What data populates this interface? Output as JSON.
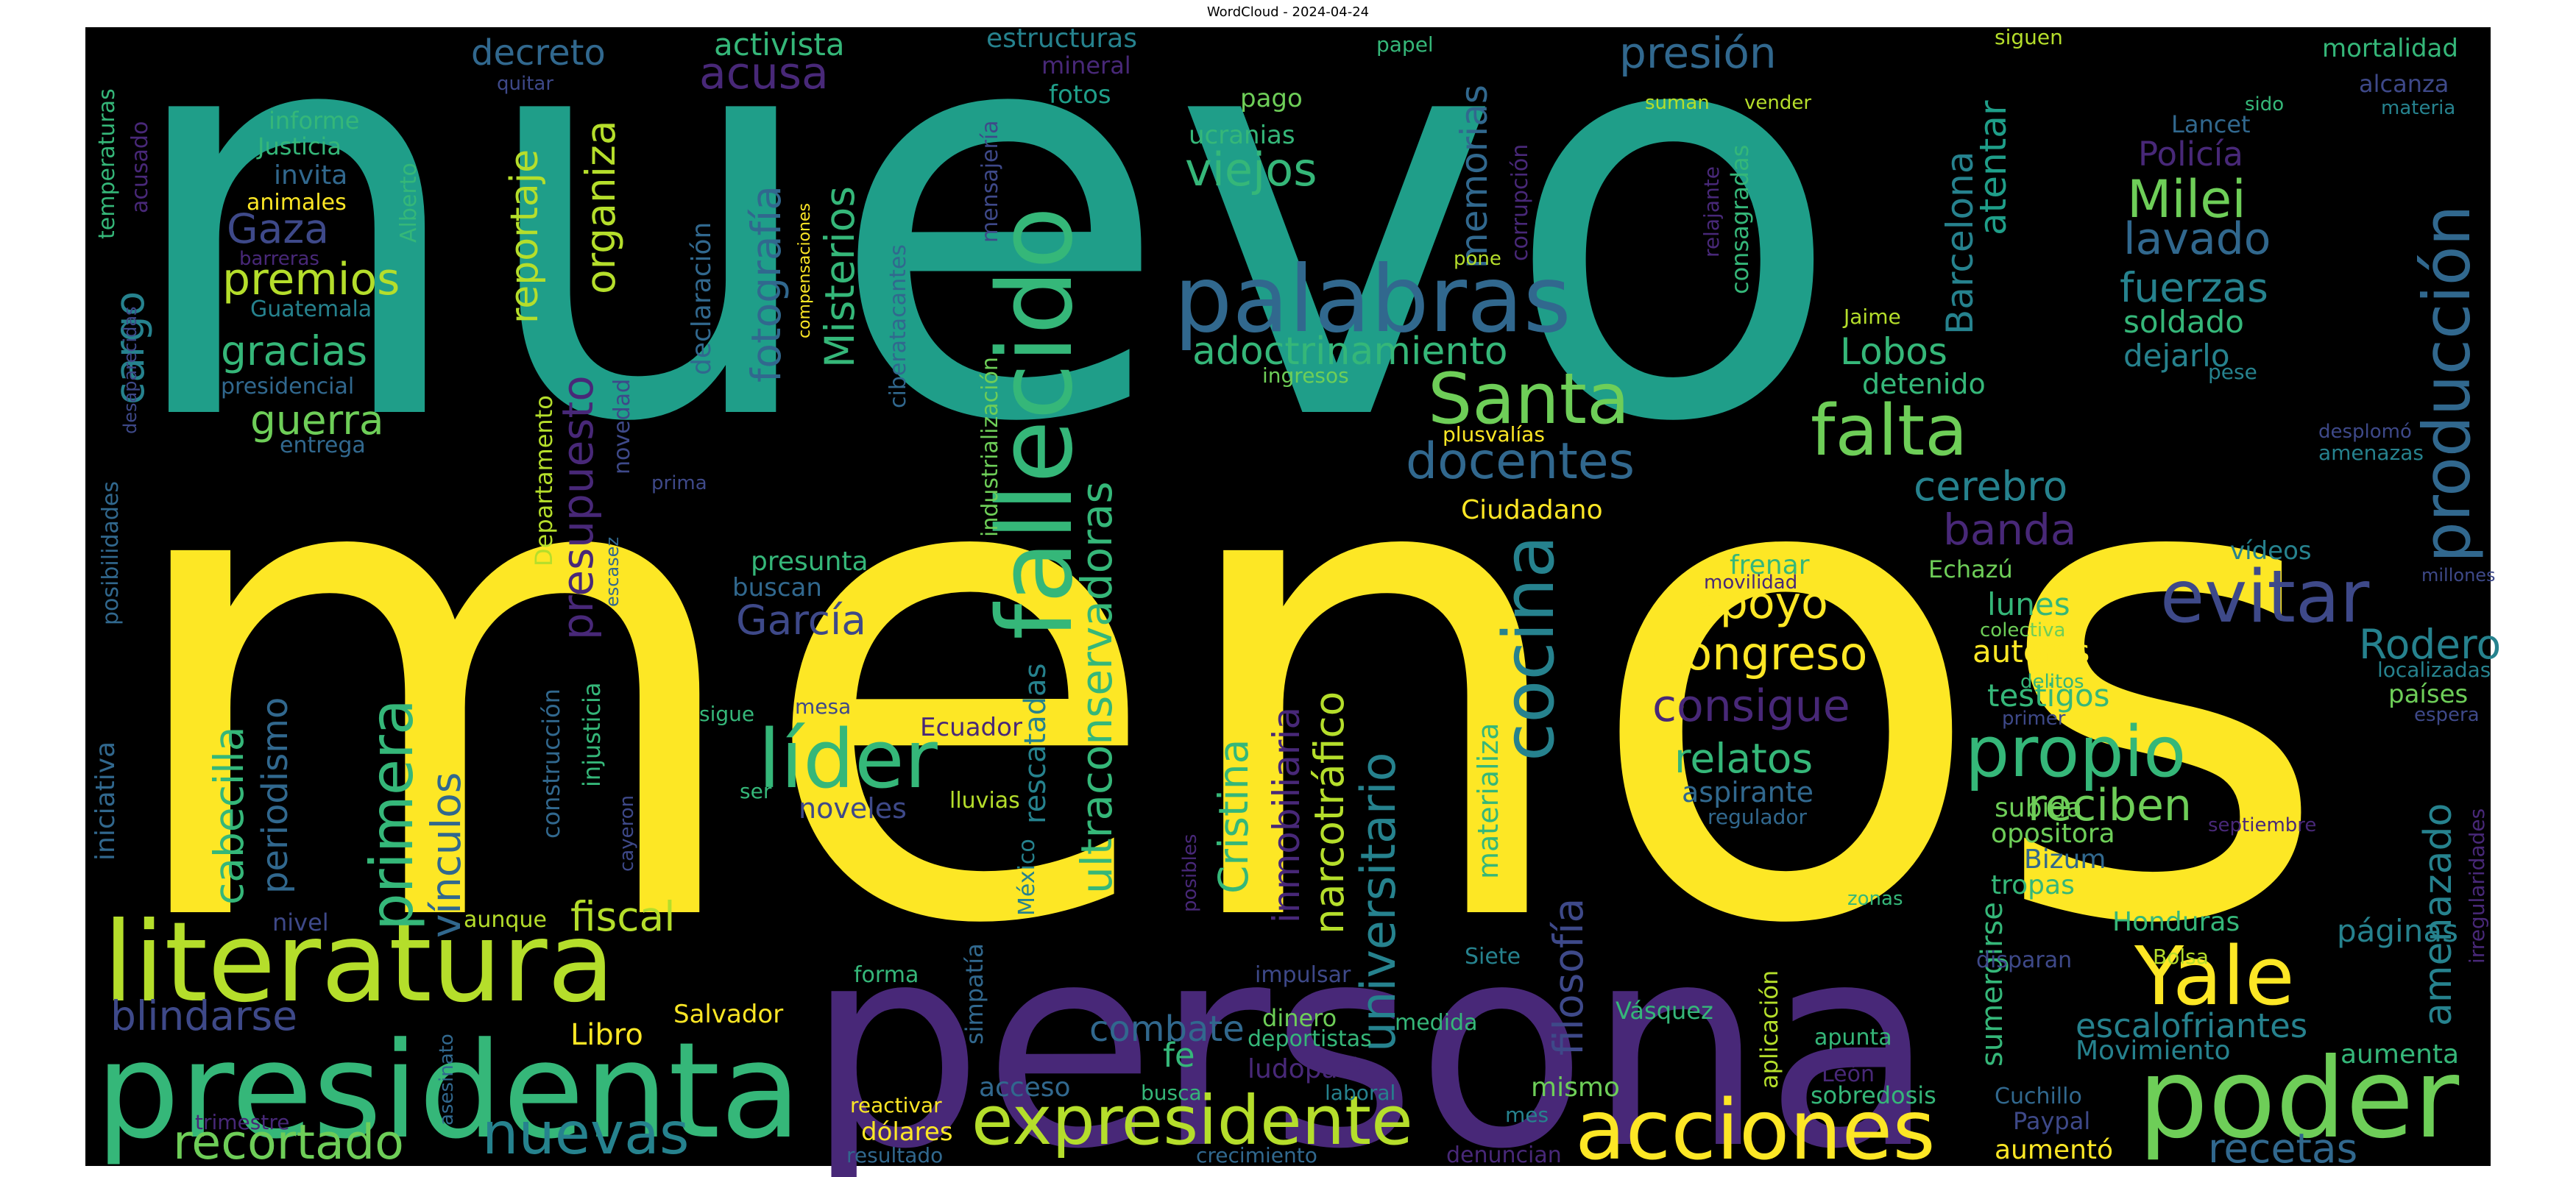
{
  "title": "WordCloud - 2024-04-24",
  "colors": {
    "background": "#000000",
    "page": "#ffffff",
    "palette": [
      "#fde725",
      "#b5de2b",
      "#6ece58",
      "#35b779",
      "#1f9e89",
      "#26828e",
      "#31688e",
      "#3e4989",
      "#482878",
      "#440154"
    ]
  },
  "chart_data": {
    "type": "wordcloud",
    "colormap": "viridis",
    "words": [
      {
        "text": "nuevo",
        "rank": 1,
        "color": "#1f9e89"
      },
      {
        "text": "menos",
        "rank": 2,
        "color": "#fde725"
      },
      {
        "text": "persona",
        "rank": 3,
        "color": "#482878"
      },
      {
        "text": "presidenta",
        "rank": 4,
        "color": "#35b779"
      },
      {
        "text": "literatura",
        "rank": 5,
        "color": "#b5de2b"
      },
      {
        "text": "poder",
        "rank": 6,
        "color": "#6ece58"
      },
      {
        "text": "acciones",
        "rank": 7,
        "color": "#fde725"
      },
      {
        "text": "expresidente",
        "rank": 8,
        "color": "#b5de2b"
      },
      {
        "text": "palabras",
        "rank": 9,
        "color": "#31688e"
      },
      {
        "text": "fallecido",
        "rank": 10,
        "color": "#35b779"
      },
      {
        "text": "nuevas",
        "rank": 11,
        "color": "#26828e"
      },
      {
        "text": "producción",
        "rank": 12,
        "color": "#31688e"
      },
      {
        "text": "líder",
        "rank": 13,
        "color": "#35b779"
      },
      {
        "text": "Yale",
        "rank": 14,
        "color": "#fde725"
      },
      {
        "text": "recortado",
        "rank": 15,
        "color": "#6ece58"
      },
      {
        "text": "Santa",
        "rank": 16,
        "color": "#6ece58"
      },
      {
        "text": "propio",
        "rank": 17,
        "color": "#35b779"
      },
      {
        "text": "falta",
        "rank": 18,
        "color": "#6ece58"
      },
      {
        "text": "evitar",
        "rank": 19,
        "color": "#3e4989"
      },
      {
        "text": "cocina",
        "rank": 20,
        "color": "#26828e"
      },
      {
        "text": "primera",
        "rank": 21,
        "color": "#35b779"
      },
      {
        "text": "universitario",
        "rank": 22,
        "color": "#26828e"
      },
      {
        "text": "ultraconservadoras",
        "rank": 23,
        "color": "#35b779"
      },
      {
        "text": "Milei",
        "rank": 24,
        "color": "#6ece58"
      },
      {
        "text": "docentes",
        "rank": 25,
        "color": "#31688e"
      },
      {
        "text": "presupuesto",
        "rank": 26,
        "color": "#482878"
      },
      {
        "text": "Congreso",
        "rank": 27,
        "color": "#fde725"
      },
      {
        "text": "vínculos",
        "rank": 28,
        "color": "#31688e"
      },
      {
        "text": "viejos",
        "rank": 29,
        "color": "#35b779"
      },
      {
        "text": "Cristina",
        "rank": 30,
        "color": "#35b779"
      },
      {
        "text": "filosofía",
        "rank": 31,
        "color": "#3e4989"
      },
      {
        "text": "reciben",
        "rank": 32,
        "color": "#6ece58"
      },
      {
        "text": "fiscal",
        "rank": 33,
        "color": "#b5de2b"
      },
      {
        "text": "narcotráfico",
        "rank": 34,
        "color": "#b5de2b"
      },
      {
        "text": "fotografía",
        "rank": 35,
        "color": "#31688e"
      },
      {
        "text": "Misterios",
        "rank": 36,
        "color": "#35b779"
      },
      {
        "text": "organiza",
        "rank": 37,
        "color": "#b5de2b"
      },
      {
        "text": "amenazado",
        "rank": 38,
        "color": "#26828e"
      },
      {
        "text": "adoctrinamiento",
        "rank": 39,
        "color": "#35b779"
      },
      {
        "text": "inmobiliaria",
        "rank": 40,
        "color": "#482878"
      },
      {
        "text": "consigue",
        "rank": 41,
        "color": "#482878"
      },
      {
        "text": "relatos",
        "rank": 42,
        "color": "#35b779"
      },
      {
        "text": "García",
        "rank": 43,
        "color": "#3e4989"
      },
      {
        "text": "presión",
        "rank": 44,
        "color": "#31688e"
      },
      {
        "text": "memorias",
        "rank": 45,
        "color": "#31688e"
      },
      {
        "text": "reportaje",
        "rank": 46,
        "color": "#b5de2b"
      },
      {
        "text": "acusa",
        "rank": 47,
        "color": "#482878"
      },
      {
        "text": "cabecilla",
        "rank": 48,
        "color": "#35b779"
      },
      {
        "text": "gracias",
        "rank": 49,
        "color": "#35b779"
      },
      {
        "text": "guerra",
        "rank": 50,
        "color": "#6ece58"
      },
      {
        "text": "premios",
        "rank": 51,
        "color": "#b5de2b"
      },
      {
        "text": "Gaza",
        "rank": 52,
        "color": "#3e4989"
      },
      {
        "text": "blindarse",
        "rank": 53,
        "color": "#3e4989"
      },
      {
        "text": "periodismo",
        "rank": 54,
        "color": "#31688e"
      },
      {
        "text": "Barcelona",
        "rank": 55,
        "color": "#26828e"
      },
      {
        "text": "atentar",
        "rank": 56,
        "color": "#1f9e89"
      },
      {
        "text": "lavado",
        "rank": 57,
        "color": "#31688e"
      },
      {
        "text": "fuerzas",
        "rank": 58,
        "color": "#26828e"
      },
      {
        "text": "cerebro",
        "rank": 59,
        "color": "#26828e"
      },
      {
        "text": "apoyo",
        "rank": 60,
        "color": "#fde725"
      },
      {
        "text": "banda",
        "rank": 61,
        "color": "#482878"
      },
      {
        "text": "Lobos",
        "rank": 62,
        "color": "#35b779"
      },
      {
        "text": "Rodero",
        "rank": 63,
        "color": "#26828e"
      },
      {
        "text": "combate",
        "rank": 64,
        "color": "#31688e"
      },
      {
        "text": "recetas",
        "rank": 65,
        "color": "#31688e"
      },
      {
        "text": "escalofriantes",
        "rank": 66,
        "color": "#26828e"
      },
      {
        "text": "páginas",
        "rank": 67,
        "color": "#26828e"
      },
      {
        "text": "cargo",
        "rank": 68,
        "color": "#26828e"
      },
      {
        "text": "decreto",
        "rank": 69,
        "color": "#31688e"
      },
      {
        "text": "activista",
        "rank": 70,
        "color": "#35b779"
      },
      {
        "text": "estructuras",
        "rank": 71,
        "color": "#26828e"
      },
      {
        "text": "Libro",
        "rank": 72,
        "color": "#fde725"
      },
      {
        "text": "sumergirse",
        "rank": 73,
        "color": "#35b779"
      },
      {
        "text": "testigos",
        "rank": 74,
        "color": "#35b779"
      },
      {
        "text": "autoras",
        "rank": 75,
        "color": "#fde725"
      },
      {
        "text": "lunes",
        "rank": 76,
        "color": "#35b779"
      },
      {
        "text": "noveles",
        "rank": 77,
        "color": "#3e4989"
      },
      {
        "text": "rescatadas",
        "rank": 78,
        "color": "#26828e"
      },
      {
        "text": "materializa",
        "rank": 79,
        "color": "#35b779"
      },
      {
        "text": "soldado",
        "rank": 80,
        "color": "#35b779"
      },
      {
        "text": "dejarlo",
        "rank": 81,
        "color": "#26828e"
      },
      {
        "text": "detenido",
        "rank": 82,
        "color": "#35b779"
      },
      {
        "text": "Policía",
        "rank": 83,
        "color": "#482878"
      },
      {
        "text": "aspirante",
        "rank": 84,
        "color": "#31688e"
      },
      {
        "text": "subida",
        "rank": 85,
        "color": "#6ece58"
      },
      {
        "text": "opositora",
        "rank": 86,
        "color": "#6ece58"
      },
      {
        "text": "Bizum",
        "rank": 87,
        "color": "#31688e"
      },
      {
        "text": "tropas",
        "rank": 88,
        "color": "#35b779"
      },
      {
        "text": "Honduras",
        "rank": 89,
        "color": "#35b779"
      },
      {
        "text": "Movimiento",
        "rank": 90,
        "color": "#26828e"
      },
      {
        "text": "aumenta",
        "rank": 91,
        "color": "#35b779"
      },
      {
        "text": "mismo",
        "rank": 92,
        "color": "#6ece58"
      },
      {
        "text": "acceso",
        "rank": 93,
        "color": "#31688e"
      },
      {
        "text": "ludopatía",
        "rank": 94,
        "color": "#482878"
      },
      {
        "text": "fe",
        "rank": 95,
        "color": "#35b779"
      },
      {
        "text": "Salvador",
        "rank": 96,
        "color": "#fde725"
      },
      {
        "text": "Ciudadano",
        "rank": 97,
        "color": "#fde725"
      },
      {
        "text": "presunta",
        "rank": 98,
        "color": "#35b779"
      },
      {
        "text": "buscan",
        "rank": 99,
        "color": "#31688e"
      },
      {
        "text": "frenar",
        "rank": 100,
        "color": "#35b779"
      },
      {
        "text": "Echazú",
        "rank": 101,
        "color": "#6ece58"
      },
      {
        "text": "ucranias",
        "rank": 102,
        "color": "#35b779"
      },
      {
        "text": "pago",
        "rank": 103,
        "color": "#6ece58"
      },
      {
        "text": "fotos",
        "rank": 104,
        "color": "#1f9e89"
      },
      {
        "text": "mineral",
        "rank": 105,
        "color": "#482878"
      },
      {
        "text": "informe",
        "rank": 106,
        "color": "#35b779"
      },
      {
        "text": "Justicia",
        "rank": 107,
        "color": "#35b779"
      },
      {
        "text": "invita",
        "rank": 108,
        "color": "#31688e"
      },
      {
        "text": "animales",
        "rank": 109,
        "color": "#fde725"
      },
      {
        "text": "Guatemala",
        "rank": 110,
        "color": "#26828e"
      },
      {
        "text": "presidencial",
        "rank": 111,
        "color": "#31688e"
      },
      {
        "text": "entrega",
        "rank": 112,
        "color": "#31688e"
      },
      {
        "text": "barreras",
        "rank": 113,
        "color": "#482878"
      },
      {
        "text": "Alberto",
        "rank": 114,
        "color": "#35b779"
      },
      {
        "text": "temperaturas",
        "rank": 115,
        "color": "#35b779"
      },
      {
        "text": "acusado",
        "rank": 116,
        "color": "#482878"
      },
      {
        "text": "quitar",
        "rank": 117,
        "color": "#3e4989"
      },
      {
        "text": "declaración",
        "rank": 118,
        "color": "#31688e"
      },
      {
        "text": "mensajería",
        "rank": 119,
        "color": "#3e4989"
      },
      {
        "text": "ciberatacantes",
        "rank": 120,
        "color": "#31688e"
      },
      {
        "text": "compensaciones",
        "rank": 121,
        "color": "#fde725"
      },
      {
        "text": "industrialización",
        "rank": 122,
        "color": "#6ece58"
      },
      {
        "text": "Departamento",
        "rank": 123,
        "color": "#b5de2b"
      },
      {
        "text": "novedad",
        "rank": 124,
        "color": "#3e4989"
      },
      {
        "text": "construcción",
        "rank": 125,
        "color": "#31688e"
      },
      {
        "text": "injusticia",
        "rank": 126,
        "color": "#35b779"
      },
      {
        "text": "iniciativa",
        "rank": 127,
        "color": "#31688e"
      },
      {
        "text": "posibilidades",
        "rank": 128,
        "color": "#31688e"
      },
      {
        "text": "desaparecidas",
        "rank": 129,
        "color": "#3e4989"
      },
      {
        "text": "escasez",
        "rank": 130,
        "color": "#31688e"
      },
      {
        "text": "prima",
        "rank": 131,
        "color": "#3e4989"
      },
      {
        "text": "cayeron",
        "rank": 132,
        "color": "#3e4989"
      },
      {
        "text": "asesinato",
        "rank": 133,
        "color": "#31688e"
      },
      {
        "text": "trimestre",
        "rank": 134,
        "color": "#482878"
      },
      {
        "text": "nivel",
        "rank": 135,
        "color": "#3e4989"
      },
      {
        "text": "aunque",
        "rank": 136,
        "color": "#b5de2b"
      },
      {
        "text": "mesa",
        "rank": 137,
        "color": "#3e4989"
      },
      {
        "text": "sigue",
        "rank": 138,
        "color": "#35b779"
      },
      {
        "text": "ser",
        "rank": 139,
        "color": "#35b779"
      },
      {
        "text": "Ecuador",
        "rank": 140,
        "color": "#482878"
      },
      {
        "text": "lluvias",
        "rank": 141,
        "color": "#b5de2b"
      },
      {
        "text": "México",
        "rank": 142,
        "color": "#26828e"
      },
      {
        "text": "simpatía",
        "rank": 143,
        "color": "#31688e"
      },
      {
        "text": "posibles",
        "rank": 144,
        "color": "#482878"
      },
      {
        "text": "forma",
        "rank": 145,
        "color": "#35b779"
      },
      {
        "text": "impulsar",
        "rank": 146,
        "color": "#3e4989"
      },
      {
        "text": "dinero",
        "rank": 147,
        "color": "#6ece58"
      },
      {
        "text": "deportistas",
        "rank": 148,
        "color": "#35b779"
      },
      {
        "text": "medida",
        "rank": 149,
        "color": "#35b779"
      },
      {
        "text": "Siete",
        "rank": 150,
        "color": "#26828e"
      },
      {
        "text": "Vásquez",
        "rank": 151,
        "color": "#35b779"
      },
      {
        "text": "aplicación",
        "rank": 152,
        "color": "#b5de2b"
      },
      {
        "text": "apunta",
        "rank": 153,
        "color": "#35b779"
      },
      {
        "text": "León",
        "rank": 154,
        "color": "#482878"
      },
      {
        "text": "sobredosis",
        "rank": 155,
        "color": "#35b779"
      },
      {
        "text": "Cuchillo",
        "rank": 156,
        "color": "#31688e"
      },
      {
        "text": "Paypal",
        "rank": 157,
        "color": "#3e4989"
      },
      {
        "text": "aumentó",
        "rank": 158,
        "color": "#fde725"
      },
      {
        "text": "reactivar",
        "rank": 159,
        "color": "#fde725"
      },
      {
        "text": "busca",
        "rank": 160,
        "color": "#35b779"
      },
      {
        "text": "laboral",
        "rank": 161,
        "color": "#26828e"
      },
      {
        "text": "mes",
        "rank": 162,
        "color": "#26828e"
      },
      {
        "text": "denuncian",
        "rank": 163,
        "color": "#482878"
      },
      {
        "text": "crecimiento",
        "rank": 164,
        "color": "#31688e"
      },
      {
        "text": "resultado",
        "rank": 165,
        "color": "#31688e"
      },
      {
        "text": "dólares",
        "rank": 166,
        "color": "#fde725"
      },
      {
        "text": "disparan",
        "rank": 167,
        "color": "#3e4989"
      },
      {
        "text": "Bolsa",
        "rank": 168,
        "color": "#b5de2b"
      },
      {
        "text": "zonas",
        "rank": 169,
        "color": "#35b779"
      },
      {
        "text": "regulador",
        "rank": 170,
        "color": "#31688e"
      },
      {
        "text": "septiembre",
        "rank": 171,
        "color": "#482878"
      },
      {
        "text": "irregularidades",
        "rank": 172,
        "color": "#482878"
      },
      {
        "text": "espera",
        "rank": 173,
        "color": "#3e4989"
      },
      {
        "text": "países",
        "rank": 174,
        "color": "#6ece58"
      },
      {
        "text": "localizadas",
        "rank": 175,
        "color": "#26828e"
      },
      {
        "text": "millones",
        "rank": 176,
        "color": "#3e4989"
      },
      {
        "text": "vídeos",
        "rank": 177,
        "color": "#26828e"
      },
      {
        "text": "primer",
        "rank": 178,
        "color": "#3e4989"
      },
      {
        "text": "delitos",
        "rank": 179,
        "color": "#35b779"
      },
      {
        "text": "colectiva",
        "rank": 180,
        "color": "#6ece58"
      },
      {
        "text": "movilidad",
        "rank": 181,
        "color": "#482878"
      },
      {
        "text": "amenazas",
        "rank": 182,
        "color": "#26828e"
      },
      {
        "text": "desplomó",
        "rank": 183,
        "color": "#3e4989"
      },
      {
        "text": "pese",
        "rank": 184,
        "color": "#26828e"
      },
      {
        "text": "Lancet",
        "rank": 185,
        "color": "#31688e"
      },
      {
        "text": "sido",
        "rank": 186,
        "color": "#35b779"
      },
      {
        "text": "alcanza",
        "rank": 187,
        "color": "#3e4989"
      },
      {
        "text": "materia",
        "rank": 188,
        "color": "#26828e"
      },
      {
        "text": "mortalidad",
        "rank": 189,
        "color": "#35b779"
      },
      {
        "text": "siguen",
        "rank": 190,
        "color": "#b5de2b"
      },
      {
        "text": "Jaime",
        "rank": 191,
        "color": "#b5de2b"
      },
      {
        "text": "ingresos",
        "rank": 192,
        "color": "#6ece58"
      },
      {
        "text": "plusvalías",
        "rank": 193,
        "color": "#fde725"
      },
      {
        "text": "consagradas",
        "rank": 194,
        "color": "#35b779"
      },
      {
        "text": "relajante",
        "rank": 195,
        "color": "#482878"
      },
      {
        "text": "suman",
        "rank": 196,
        "color": "#b5de2b"
      },
      {
        "text": "vender",
        "rank": 197,
        "color": "#b5de2b"
      },
      {
        "text": "corrupción",
        "rank": 198,
        "color": "#482878"
      },
      {
        "text": "pone",
        "rank": 199,
        "color": "#b5de2b"
      },
      {
        "text": "papel",
        "rank": 200,
        "color": "#35b779"
      }
    ]
  }
}
